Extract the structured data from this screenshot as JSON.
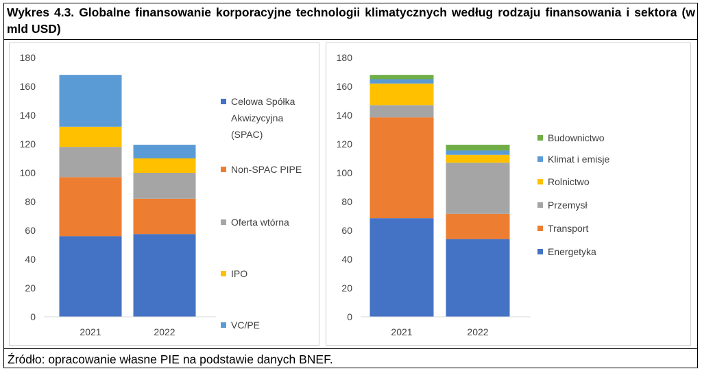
{
  "title": "Wykres 4.3. Globalne finansowanie korporacyjne technologii klimatycznych według rodzaju finansowania i sektora (w mld USD)",
  "source": "Źródło: opracowanie własne PIE na podstawie danych BNEF.",
  "chart_data": [
    {
      "type": "bar",
      "stacked": true,
      "categories": [
        "2021",
        "2022"
      ],
      "ylim": [
        0,
        180
      ],
      "yticks": [
        "0",
        "20",
        "40",
        "60",
        "80",
        "100",
        "120",
        "140",
        "160",
        "180"
      ],
      "legend_position": "right",
      "series": [
        {
          "name": "Celowa Spółka Akwizycyjna (SPAC)",
          "legend_lines": [
            "Celowa Spółka",
            "Akwizycyjna",
            "(SPAC)"
          ],
          "color": "#4472C4",
          "values": [
            56,
            57.5
          ]
        },
        {
          "name": "Non-SPAC PIPE",
          "legend_lines": [
            "Non-SPAC PIPE"
          ],
          "color": "#ED7D31",
          "values": [
            41,
            24.5
          ]
        },
        {
          "name": "Oferta wtórna",
          "legend_lines": [
            "Oferta wtórna"
          ],
          "color": "#A5A5A5",
          "values": [
            21,
            18
          ]
        },
        {
          "name": "IPO",
          "legend_lines": [
            "IPO"
          ],
          "color": "#FFC000",
          "values": [
            14,
            10
          ]
        },
        {
          "name": "VC/PE",
          "legend_lines": [
            "VC/PE"
          ],
          "color": "#5B9BD5",
          "values": [
            36,
            9.5
          ]
        }
      ]
    },
    {
      "type": "bar",
      "stacked": true,
      "categories": [
        "2021",
        "2022"
      ],
      "ylim": [
        0,
        180
      ],
      "yticks": [
        "0",
        "20",
        "40",
        "60",
        "80",
        "100",
        "120",
        "140",
        "160",
        "180"
      ],
      "legend_position": "right",
      "series": [
        {
          "name": "Energetyka",
          "legend_lines": [
            "Energetyka"
          ],
          "color": "#4472C4",
          "values": [
            68.5,
            54
          ]
        },
        {
          "name": "Transport",
          "legend_lines": [
            "Transport"
          ],
          "color": "#ED7D31",
          "values": [
            70,
            17.5
          ]
        },
        {
          "name": "Przemysł",
          "legend_lines": [
            "Przemysł"
          ],
          "color": "#A5A5A5",
          "values": [
            8.5,
            35.5
          ]
        },
        {
          "name": "Rolnictwo",
          "legend_lines": [
            "Rolnictwo"
          ],
          "color": "#FFC000",
          "values": [
            15,
            5.5
          ]
        },
        {
          "name": "Klimat i emisje",
          "legend_lines": [
            "Klimat i emisje"
          ],
          "color": "#5B9BD5",
          "values": [
            3,
            3
          ]
        },
        {
          "name": "Budownictwo",
          "legend_lines": [
            "Budownictwo"
          ],
          "color": "#70AD47",
          "values": [
            3,
            4
          ]
        }
      ]
    }
  ]
}
